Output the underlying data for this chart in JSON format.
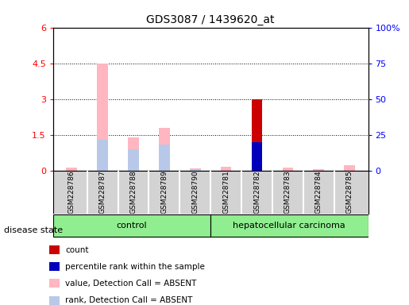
{
  "title": "GDS3087 / 1439620_at",
  "samples": [
    "GSM228786",
    "GSM228787",
    "GSM228788",
    "GSM228789",
    "GSM228790",
    "GSM228781",
    "GSM228782",
    "GSM228783",
    "GSM228784",
    "GSM228785"
  ],
  "groups": [
    "control",
    "control",
    "control",
    "control",
    "control",
    "hepatocellular carcinoma",
    "hepatocellular carcinoma",
    "hepatocellular carcinoma",
    "hepatocellular carcinoma",
    "hepatocellular carcinoma"
  ],
  "value_absent": [
    0.12,
    4.5,
    1.4,
    1.8,
    0.1,
    0.18,
    0.0,
    0.13,
    0.06,
    0.22
  ],
  "rank_absent": [
    0.0,
    1.3,
    0.9,
    1.1,
    0.08,
    0.0,
    0.0,
    0.0,
    0.0,
    0.0
  ],
  "count": [
    0.0,
    0.0,
    0.0,
    0.0,
    0.0,
    0.0,
    3.0,
    0.0,
    0.0,
    0.0
  ],
  "percentile_rank": [
    0.0,
    0.0,
    0.0,
    0.0,
    0.0,
    0.0,
    1.2,
    0.0,
    0.0,
    0.0
  ],
  "ylim_left": [
    0,
    6
  ],
  "ylim_right": [
    0,
    100
  ],
  "yticks_left": [
    0,
    1.5,
    3.0,
    4.5,
    6.0
  ],
  "yticks_right": [
    0,
    25,
    50,
    75,
    100
  ],
  "ytick_labels_left": [
    "0",
    "1.5",
    "3",
    "4.5",
    "6"
  ],
  "ytick_labels_right": [
    "0",
    "25",
    "50",
    "75",
    "100%"
  ],
  "color_value_absent": "#FFB6C1",
  "color_rank_absent": "#B8C8E8",
  "color_count": "#CC0000",
  "color_percentile": "#0000BB",
  "bar_width": 0.35,
  "legend_items": [
    {
      "label": "count",
      "color": "#CC0000"
    },
    {
      "label": "percentile rank within the sample",
      "color": "#0000BB"
    },
    {
      "label": "value, Detection Call = ABSENT",
      "color": "#FFB6C1"
    },
    {
      "label": "rank, Detection Call = ABSENT",
      "color": "#B8C8E8"
    }
  ]
}
